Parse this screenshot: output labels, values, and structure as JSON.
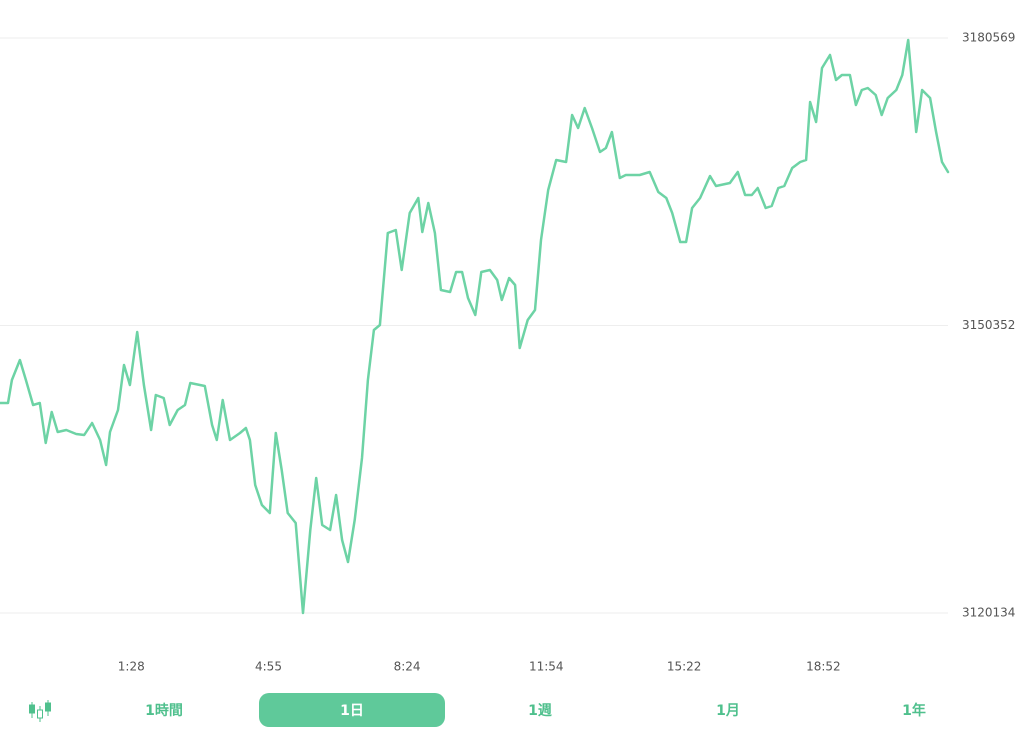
{
  "chart_data": {
    "type": "line",
    "color": "#6dd3a5",
    "x": [
      -110,
      -98,
      -92,
      -80,
      -71,
      -60,
      -50,
      -41,
      -32,
      -23,
      -10,
      5,
      17,
      29,
      41,
      50,
      56,
      68,
      77,
      86,
      97,
      107,
      118,
      125,
      137,
      146,
      158,
      169,
      177,
      199,
      210,
      217,
      226,
      237,
      252,
      261,
      267,
      275,
      285,
      297,
      306,
      315,
      324,
      336,
      347,
      358,
      367,
      376,
      388,
      397,
      406,
      415,
      425,
      436,
      445,
      454,
      463,
      475,
      487,
      496,
      508,
      521,
      527,
      536,
      546,
      555,
      569,
      578,
      587,
      596,
      607,
      616,
      629,
      640,
      647,
      658,
      667,
      674,
      686,
      697,
      706,
      717,
      729,
      744,
      753,
      762,
      772,
      783,
      795,
      804,
      813,
      825,
      834,
      855,
      870,
      883,
      895,
      904,
      916,
      925,
      934,
      946,
      961,
      970,
      991,
      1003,
      1014,
      1024,
      1033,
      1045,
      1054,
      1064,
      1073,
      1085,
      1097,
      1106,
      1112,
      1121,
      1130,
      1142,
      1151,
      1160,
      1172,
      1181,
      1190,
      1199,
      1211,
      1220,
      1229,
      1242,
      1251,
      1260,
      1266,
      1272,
      1281,
      1293,
      1302,
      1311,
      1320
    ],
    "values": [
      3142205,
      3142205,
      3144622,
      3146724,
      3144622,
      3141995,
      3142205,
      3138001,
      3141259,
      3139157,
      3139367,
      3138947,
      3138842,
      3140103,
      3138316,
      3135689,
      3139157,
      3141469,
      3146199,
      3144097,
      3149667,
      3144097,
      3139367,
      3143046,
      3142731,
      3139893,
      3141469,
      3141995,
      3144307,
      3143992,
      3139893,
      3138316,
      3142520,
      3138316,
      3139052,
      3139578,
      3138316,
      3133587,
      3131485,
      3130644,
      3139052,
      3135163,
      3130644,
      3129593,
      3120134,
      3128857,
      3134323,
      3129383,
      3128857,
      3132536,
      3127806,
      3125494,
      3129908,
      3136425,
      3144622,
      3149877,
      3150403,
      3160072,
      3160387,
      3156183,
      3162174,
      3163751,
      3160177,
      3163225,
      3160072,
      3154081,
      3153871,
      3155973,
      3155973,
      3153241,
      3151454,
      3155973,
      3156183,
      3155132,
      3153030,
      3155343,
      3154607,
      3147986,
      3150928,
      3151979,
      3159336,
      3164591,
      3167744,
      3167534,
      3172474,
      3171108,
      3173210,
      3171108,
      3168585,
      3169006,
      3170687,
      3165853,
      3166168,
      3166168,
      3166483,
      3164381,
      3163751,
      3162174,
      3159126,
      3159126,
      3162700,
      3163751,
      3166063,
      3165012,
      3165327,
      3166483,
      3164066,
      3164066,
      3164802,
      3162700,
      3162910,
      3164802,
      3165012,
      3166904,
      3167534,
      3167744,
      3173840,
      3171738,
      3177414,
      3178780,
      3176152,
      3176678,
      3176678,
      3173525,
      3175101,
      3175312,
      3174576,
      3172474,
      3174261,
      3175101,
      3176678,
      3180356,
      3175627,
      3170687,
      3175101,
      3174261,
      3170687,
      3167534,
      3166483
    ],
    "xlim": [
      -110,
      1320
    ],
    "xticks": [
      {
        "value": 88,
        "label": "1:28"
      },
      {
        "value": 295,
        "label": "4:55"
      },
      {
        "value": 504,
        "label": "8:24"
      },
      {
        "value": 714,
        "label": "11:54"
      },
      {
        "value": 922,
        "label": "15:22"
      },
      {
        "value": 1132,
        "label": "18:52"
      }
    ],
    "ylim": [
      3120134,
      3180569
    ],
    "yticks": [
      3120134,
      3150352,
      3180569
    ],
    "grid": true
  },
  "tabs": {
    "items": [
      "1時間",
      "1日",
      "1週",
      "1月",
      "1年"
    ],
    "active": 1
  }
}
